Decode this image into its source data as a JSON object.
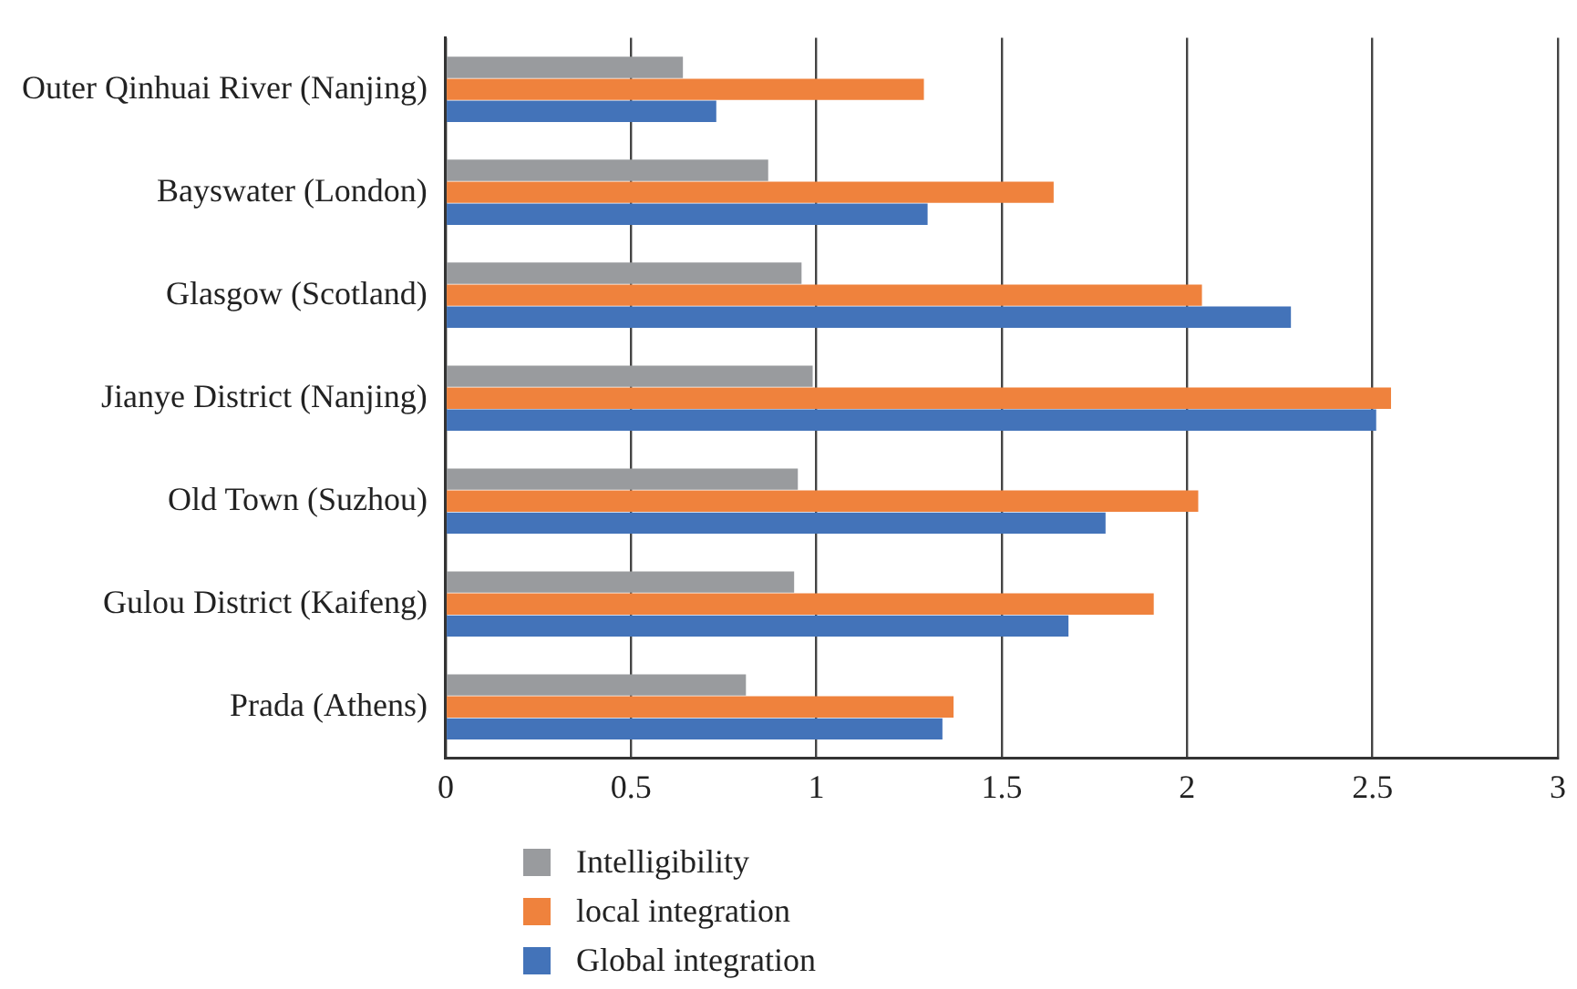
{
  "chart_data": {
    "type": "bar",
    "orientation": "horizontal",
    "categories": [
      "Outer Qinhuai River (Nanjing)",
      "Bayswater (London)",
      "Glasgow (Scotland)",
      "Jianye District (Nanjing)",
      "Old Town (Suzhou)",
      "Gulou District (Kaifeng)",
      "Prada (Athens)"
    ],
    "series": [
      {
        "name": "Intelligibility",
        "color": "#999b9e",
        "values": [
          0.64,
          0.87,
          0.96,
          0.99,
          0.95,
          0.94,
          0.81
        ]
      },
      {
        "name": "local integration",
        "color": "#ef823d",
        "values": [
          1.29,
          1.64,
          2.04,
          2.55,
          2.03,
          1.91,
          1.37
        ]
      },
      {
        "name": "Global integration",
        "color": "#4373b9",
        "values": [
          0.73,
          1.3,
          2.28,
          2.51,
          1.78,
          1.68,
          1.34
        ]
      }
    ],
    "xlim": [
      0,
      3
    ],
    "xticks": [
      0,
      0.5,
      1,
      1.5,
      2,
      2.5,
      3
    ],
    "grid": "x",
    "legend": "bottom"
  }
}
